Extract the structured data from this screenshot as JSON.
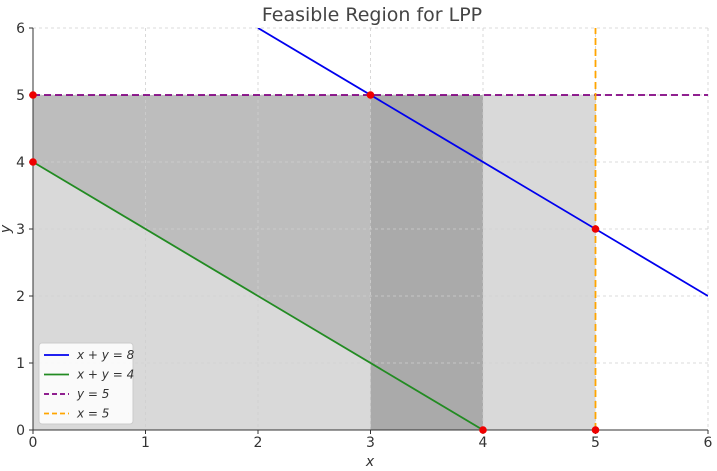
{
  "chart_data": {
    "type": "line",
    "title": "Feasible Region for LPP",
    "xlabel": "x",
    "ylabel": "y",
    "xlim": [
      0,
      6
    ],
    "ylim": [
      0,
      6
    ],
    "xticks": [
      "0",
      "1",
      "2",
      "3",
      "4",
      "5",
      "6"
    ],
    "yticks": [
      "0",
      "1",
      "2",
      "3",
      "4",
      "5",
      "6"
    ],
    "grid": true,
    "legend_position": "bottom-left",
    "series": [
      {
        "name": "x + y = 8",
        "color": "#0000ee",
        "style": "solid",
        "x": [
          2,
          6
        ],
        "y": [
          6,
          2
        ]
      },
      {
        "name": "x + y = 4",
        "color": "#228b22",
        "style": "solid",
        "x": [
          0,
          4
        ],
        "y": [
          4,
          0
        ]
      },
      {
        "name": "y = 5",
        "color": "#800080",
        "style": "dashed",
        "x": [
          0,
          6
        ],
        "y": [
          5,
          5
        ]
      },
      {
        "name": "x = 5",
        "color": "#ffa500",
        "style": "dashed",
        "x": [
          5,
          5
        ],
        "y": [
          0,
          6
        ]
      }
    ],
    "shaded_regions": [
      {
        "polygon": [
          [
            0,
            0
          ],
          [
            5,
            0
          ],
          [
            5,
            5
          ],
          [
            0,
            5
          ]
        ],
        "color": "#d9d9d9"
      },
      {
        "polygon": [
          [
            0,
            4
          ],
          [
            4,
            0
          ],
          [
            4,
            5
          ],
          [
            0,
            5
          ]
        ],
        "color": "#bdbdbd"
      },
      {
        "polygon": [
          [
            3,
            0
          ],
          [
            4,
            0
          ],
          [
            4,
            5
          ],
          [
            3,
            5
          ]
        ],
        "color": "#aaaaaa"
      }
    ],
    "points": [
      {
        "x": 0,
        "y": 5
      },
      {
        "x": 0,
        "y": 4
      },
      {
        "x": 3,
        "y": 5
      },
      {
        "x": 5,
        "y": 3
      },
      {
        "x": 4,
        "y": 0
      },
      {
        "x": 5,
        "y": 0
      }
    ],
    "point_color": "#ee0000"
  }
}
